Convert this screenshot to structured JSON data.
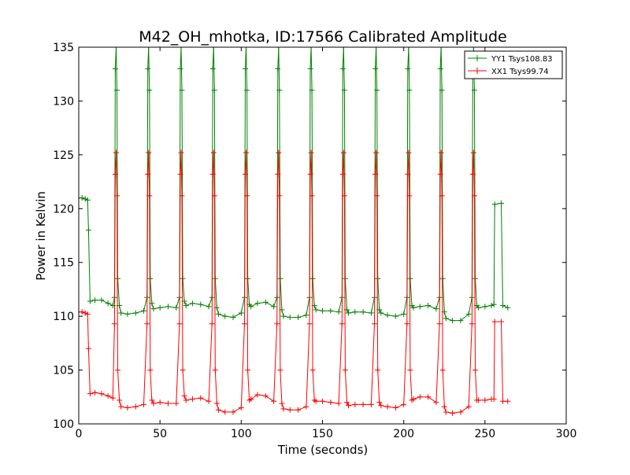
{
  "chart_data": {
    "type": "line",
    "title": "M42_OH_mhotka, ID:17566 Calibrated Amplitude",
    "xlabel": "Time (seconds)",
    "ylabel": "Power in Kelvin",
    "xlim": [
      0,
      300
    ],
    "ylim": [
      100,
      135
    ],
    "xticks": [
      0,
      50,
      100,
      150,
      200,
      250,
      300
    ],
    "yticks": [
      100,
      105,
      110,
      115,
      120,
      125,
      130,
      135
    ],
    "grid": false,
    "legend_position": "top-right",
    "marker": "+",
    "series": [
      {
        "name": "YY1 Tsys108.83",
        "color": "#008000",
        "pulse_peak": 135.0,
        "pulse_times": [
          23,
          43,
          63,
          83,
          103,
          123,
          143,
          163,
          183,
          203,
          223,
          243
        ],
        "points": [
          [
            0,
            121.0
          ],
          [
            2,
            121.0
          ],
          [
            4,
            120.9
          ],
          [
            5.5,
            120.8
          ],
          [
            6,
            118.0
          ],
          [
            7,
            111.4
          ],
          [
            10,
            111.5
          ],
          [
            14,
            111.5
          ],
          [
            18,
            111.2
          ],
          [
            21,
            111.0
          ],
          [
            24,
            113.5
          ],
          [
            25,
            111.0
          ],
          [
            26,
            110.3
          ],
          [
            30,
            110.2
          ],
          [
            35,
            110.3
          ],
          [
            40,
            110.5
          ],
          [
            44,
            113.5
          ],
          [
            45,
            111.2
          ],
          [
            46,
            110.7
          ],
          [
            50,
            110.8
          ],
          [
            55,
            110.9
          ],
          [
            60,
            110.8
          ],
          [
            64,
            113.5
          ],
          [
            65,
            111.4
          ],
          [
            66,
            111.0
          ],
          [
            70,
            111.2
          ],
          [
            75,
            111.1
          ],
          [
            80,
            110.9
          ],
          [
            84,
            113.5
          ],
          [
            85,
            110.8
          ],
          [
            86,
            110.2
          ],
          [
            90,
            110.0
          ],
          [
            95,
            109.9
          ],
          [
            100,
            110.3
          ],
          [
            104,
            113.5
          ],
          [
            105,
            111.1
          ],
          [
            106,
            110.9
          ],
          [
            110,
            111.2
          ],
          [
            115,
            111.3
          ],
          [
            120,
            110.9
          ],
          [
            124,
            113.5
          ],
          [
            125,
            110.6
          ],
          [
            126,
            110.0
          ],
          [
            130,
            109.9
          ],
          [
            135,
            109.9
          ],
          [
            140,
            110.1
          ],
          [
            144,
            113.5
          ],
          [
            145,
            111.0
          ],
          [
            146,
            110.6
          ],
          [
            150,
            110.5
          ],
          [
            155,
            110.5
          ],
          [
            160,
            110.4
          ],
          [
            164,
            113.5
          ],
          [
            165,
            110.6
          ],
          [
            166,
            110.3
          ],
          [
            170,
            110.4
          ],
          [
            175,
            110.4
          ],
          [
            180,
            110.3
          ],
          [
            184,
            113.5
          ],
          [
            185,
            110.6
          ],
          [
            186,
            110.3
          ],
          [
            190,
            110.1
          ],
          [
            195,
            110.0
          ],
          [
            200,
            110.2
          ],
          [
            204,
            113.5
          ],
          [
            205,
            111.0
          ],
          [
            206,
            110.8
          ],
          [
            210,
            110.9
          ],
          [
            215,
            111.0
          ],
          [
            220,
            110.7
          ],
          [
            224,
            113.5
          ],
          [
            225,
            110.4
          ],
          [
            226,
            109.8
          ],
          [
            230,
            109.6
          ],
          [
            235,
            109.6
          ],
          [
            240,
            110.2
          ],
          [
            244,
            113.5
          ],
          [
            245,
            111.0
          ],
          [
            246,
            110.8
          ],
          [
            250,
            110.9
          ],
          [
            254,
            111.0
          ],
          [
            255.5,
            111.1
          ],
          [
            256,
            120.4
          ],
          [
            260,
            120.5
          ],
          [
            261,
            111.0
          ],
          [
            264,
            110.8
          ]
        ]
      },
      {
        "name": "XX1 Tsys99.74",
        "color": "#ff0000",
        "pulse_peak": 125.2,
        "pulse_times": [
          23,
          43,
          63,
          83,
          103,
          123,
          143,
          163,
          183,
          203,
          223,
          243
        ],
        "points": [
          [
            0,
            110.4
          ],
          [
            2,
            110.4
          ],
          [
            4,
            110.3
          ],
          [
            5.5,
            110.2
          ],
          [
            6,
            107.0
          ],
          [
            7,
            102.8
          ],
          [
            10,
            102.9
          ],
          [
            14,
            102.8
          ],
          [
            18,
            102.6
          ],
          [
            21,
            102.4
          ],
          [
            24,
            105.0
          ],
          [
            25,
            102.2
          ],
          [
            26,
            101.6
          ],
          [
            30,
            101.5
          ],
          [
            35,
            101.6
          ],
          [
            40,
            101.8
          ],
          [
            44,
            105.0
          ],
          [
            45,
            102.2
          ],
          [
            46,
            101.9
          ],
          [
            50,
            102.0
          ],
          [
            55,
            101.9
          ],
          [
            60,
            101.9
          ],
          [
            64,
            105.0
          ],
          [
            65,
            102.6
          ],
          [
            66,
            102.2
          ],
          [
            70,
            102.3
          ],
          [
            75,
            102.4
          ],
          [
            80,
            102.1
          ],
          [
            84,
            105.0
          ],
          [
            85,
            101.9
          ],
          [
            86,
            101.3
          ],
          [
            90,
            101.1
          ],
          [
            95,
            101.1
          ],
          [
            100,
            101.5
          ],
          [
            104,
            105.0
          ],
          [
            105,
            102.2
          ],
          [
            106,
            102.3
          ],
          [
            110,
            102.7
          ],
          [
            115,
            102.6
          ],
          [
            120,
            102.1
          ],
          [
            124,
            105.0
          ],
          [
            125,
            101.9
          ],
          [
            126,
            101.4
          ],
          [
            130,
            101.3
          ],
          [
            135,
            101.3
          ],
          [
            140,
            101.6
          ],
          [
            144,
            105.0
          ],
          [
            145,
            102.2
          ],
          [
            146,
            102.1
          ],
          [
            150,
            102.1
          ],
          [
            155,
            102.0
          ],
          [
            160,
            101.9
          ],
          [
            164,
            105.0
          ],
          [
            165,
            102.0
          ],
          [
            166,
            101.7
          ],
          [
            170,
            101.8
          ],
          [
            175,
            101.8
          ],
          [
            180,
            101.8
          ],
          [
            184,
            105.0
          ],
          [
            185,
            102.0
          ],
          [
            186,
            101.7
          ],
          [
            190,
            101.6
          ],
          [
            195,
            101.5
          ],
          [
            200,
            101.8
          ],
          [
            204,
            105.0
          ],
          [
            205,
            102.2
          ],
          [
            206,
            102.3
          ],
          [
            210,
            102.5
          ],
          [
            215,
            102.5
          ],
          [
            220,
            102.0
          ],
          [
            224,
            105.0
          ],
          [
            225,
            101.6
          ],
          [
            226,
            101.1
          ],
          [
            230,
            101.0
          ],
          [
            235,
            101.1
          ],
          [
            240,
            101.6
          ],
          [
            244,
            105.0
          ],
          [
            245,
            102.2
          ],
          [
            246,
            102.2
          ],
          [
            250,
            102.2
          ],
          [
            254,
            102.3
          ],
          [
            255.5,
            102.3
          ],
          [
            256,
            109.5
          ],
          [
            260,
            109.5
          ],
          [
            261,
            102.1
          ],
          [
            264,
            102.1
          ]
        ]
      }
    ]
  }
}
